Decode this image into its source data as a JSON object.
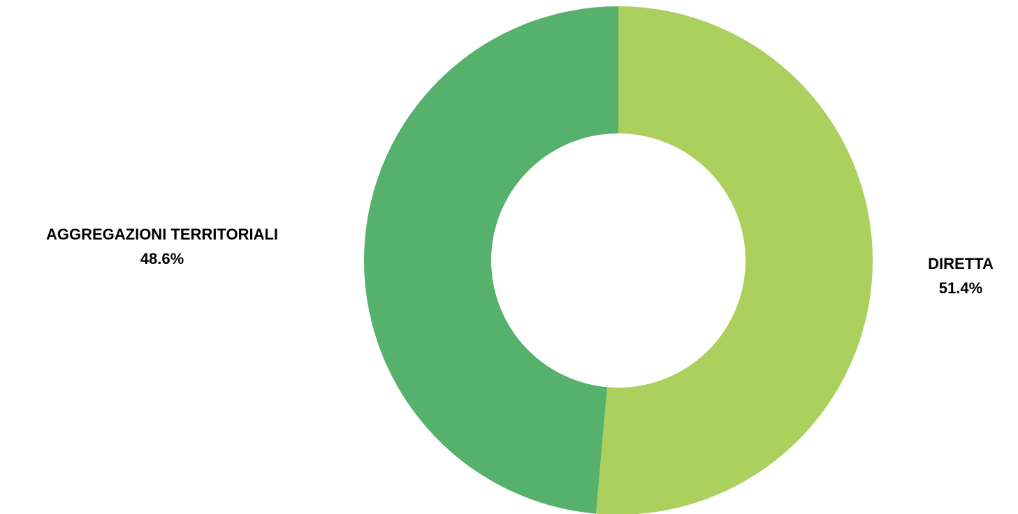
{
  "chart_data": {
    "type": "pie",
    "style": "donut",
    "slices": [
      {
        "label": "DIRETTA",
        "value": 51.4,
        "value_label": "51.4%",
        "color": "#abd05e"
      },
      {
        "label": "AGGREGAZIONI TERRITORIALI",
        "value": 48.6,
        "value_label": "48.6%",
        "color": "#55b16b"
      }
    ],
    "start_angle": "12 o'clock",
    "direction": "clockwise",
    "legend": "none",
    "labels_position": "outside"
  }
}
